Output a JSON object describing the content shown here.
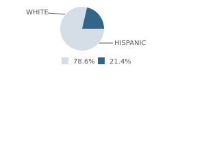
{
  "chart_data": {
    "type": "pie",
    "categories": [
      "WHITE",
      "HISPANIC"
    ],
    "values": [
      78.6,
      21.4
    ],
    "value_labels": [
      "78.6%",
      "21.4%"
    ],
    "colors": [
      "#d5dde7",
      "#336588"
    ]
  }
}
